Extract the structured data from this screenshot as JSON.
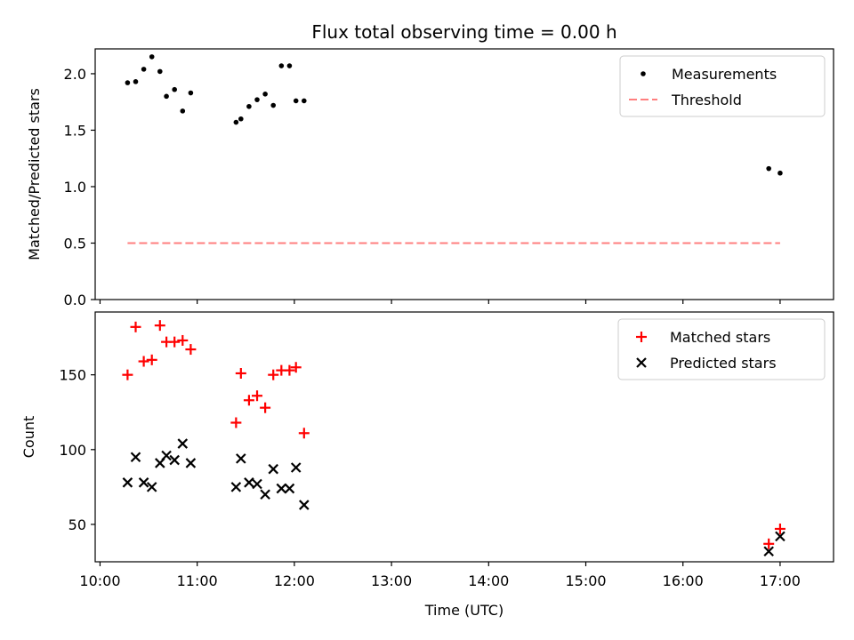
{
  "chart_data": [
    {
      "type": "scatter",
      "title": "Flux total observing time = 0.00 h",
      "ylabel": "Matched/Predicted stars",
      "xlabel": "",
      "ylim": [
        0,
        2.22
      ],
      "xlim": [
        "09:57",
        "17:33"
      ],
      "yticks": [
        "0.0",
        "0.5",
        "1.0",
        "1.5",
        "2.0"
      ],
      "legend_position": "upper-right",
      "series": [
        {
          "name": "Measurements",
          "marker": "dot",
          "color": "#000000",
          "points": [
            {
              "x": "10:17",
              "y": 1.92
            },
            {
              "x": "10:22",
              "y": 1.93
            },
            {
              "x": "10:27",
              "y": 2.04
            },
            {
              "x": "10:32",
              "y": 2.15
            },
            {
              "x": "10:37",
              "y": 2.02
            },
            {
              "x": "10:41",
              "y": 1.8
            },
            {
              "x": "10:46",
              "y": 1.86
            },
            {
              "x": "10:51",
              "y": 1.67
            },
            {
              "x": "10:56",
              "y": 1.83
            },
            {
              "x": "11:24",
              "y": 1.57
            },
            {
              "x": "11:27",
              "y": 1.6
            },
            {
              "x": "11:32",
              "y": 1.71
            },
            {
              "x": "11:37",
              "y": 1.77
            },
            {
              "x": "11:42",
              "y": 1.82
            },
            {
              "x": "11:47",
              "y": 1.72
            },
            {
              "x": "11:52",
              "y": 2.07
            },
            {
              "x": "11:57",
              "y": 2.07
            },
            {
              "x": "12:01",
              "y": 1.76
            },
            {
              "x": "12:06",
              "y": 1.76
            },
            {
              "x": "16:53",
              "y": 1.16
            },
            {
              "x": "17:00",
              "y": 1.12
            }
          ]
        },
        {
          "name": "Threshold",
          "marker": "dashed-line",
          "color": "#ff7f7f",
          "points": [
            {
              "x": "10:17",
              "y": 0.5
            },
            {
              "x": "17:00",
              "y": 0.5
            }
          ]
        }
      ]
    },
    {
      "type": "scatter",
      "title": "",
      "ylabel": "Count",
      "xlabel": "Time (UTC)",
      "ylim": [
        25,
        192
      ],
      "xlim": [
        "09:57",
        "17:33"
      ],
      "yticks": [
        "50",
        "100",
        "150"
      ],
      "xticks": [
        "10:00",
        "11:00",
        "12:00",
        "13:00",
        "14:00",
        "15:00",
        "16:00",
        "17:00"
      ],
      "legend_position": "upper-right",
      "series": [
        {
          "name": "Matched stars",
          "marker": "plus",
          "color": "#ff0000",
          "points": [
            {
              "x": "10:17",
              "y": 150
            },
            {
              "x": "10:22",
              "y": 182
            },
            {
              "x": "10:27",
              "y": 159
            },
            {
              "x": "10:32",
              "y": 160
            },
            {
              "x": "10:37",
              "y": 183
            },
            {
              "x": "10:41",
              "y": 172
            },
            {
              "x": "10:46",
              "y": 172
            },
            {
              "x": "10:51",
              "y": 173
            },
            {
              "x": "10:56",
              "y": 167
            },
            {
              "x": "11:24",
              "y": 118
            },
            {
              "x": "11:27",
              "y": 151
            },
            {
              "x": "11:32",
              "y": 133
            },
            {
              "x": "11:37",
              "y": 136
            },
            {
              "x": "11:42",
              "y": 128
            },
            {
              "x": "11:47",
              "y": 150
            },
            {
              "x": "11:52",
              "y": 153
            },
            {
              "x": "11:57",
              "y": 153
            },
            {
              "x": "12:01",
              "y": 155
            },
            {
              "x": "12:06",
              "y": 111
            },
            {
              "x": "16:53",
              "y": 37
            },
            {
              "x": "17:00",
              "y": 47
            }
          ]
        },
        {
          "name": "Predicted stars",
          "marker": "x",
          "color": "#000000",
          "points": [
            {
              "x": "10:17",
              "y": 78
            },
            {
              "x": "10:22",
              "y": 95
            },
            {
              "x": "10:27",
              "y": 78
            },
            {
              "x": "10:32",
              "y": 75
            },
            {
              "x": "10:37",
              "y": 91
            },
            {
              "x": "10:41",
              "y": 96
            },
            {
              "x": "10:46",
              "y": 93
            },
            {
              "x": "10:51",
              "y": 104
            },
            {
              "x": "10:56",
              "y": 91
            },
            {
              "x": "11:24",
              "y": 75
            },
            {
              "x": "11:27",
              "y": 94
            },
            {
              "x": "11:32",
              "y": 78
            },
            {
              "x": "11:37",
              "y": 77
            },
            {
              "x": "11:42",
              "y": 70
            },
            {
              "x": "11:47",
              "y": 87
            },
            {
              "x": "11:52",
              "y": 74
            },
            {
              "x": "11:57",
              "y": 74
            },
            {
              "x": "12:01",
              "y": 88
            },
            {
              "x": "12:06",
              "y": 63
            },
            {
              "x": "16:53",
              "y": 32
            },
            {
              "x": "17:00",
              "y": 42
            }
          ]
        }
      ]
    }
  ]
}
